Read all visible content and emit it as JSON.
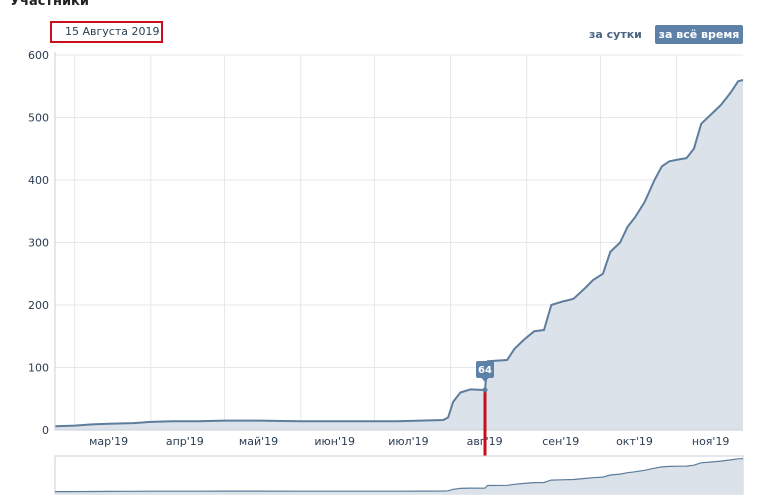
{
  "header": {
    "title": "Участники",
    "selected_date": "15 Августа 2019"
  },
  "period_buttons": {
    "day": "за сутки",
    "all_time": "за всё время",
    "active": "all_time"
  },
  "tooltip": {
    "value": "64",
    "x_date": "2019-08-15"
  },
  "colors": {
    "line": "#5e7d9c",
    "area": "#dbe2ea",
    "grid": "#e4e8ec",
    "marker": "#c8101c",
    "accent": "#5e81a8"
  },
  "chart_data": {
    "type": "area",
    "title": "Участники",
    "x_type": "date",
    "ylim": [
      0,
      600
    ],
    "xlim": [
      "2019-02-21",
      "2019-11-28"
    ],
    "y_ticks": [
      0,
      100,
      200,
      300,
      400,
      500,
      600
    ],
    "x_ticks": [
      {
        "date": "2019-03-01",
        "label": "мар'19"
      },
      {
        "date": "2019-04-01",
        "label": "апр'19"
      },
      {
        "date": "2019-05-01",
        "label": "май'19"
      },
      {
        "date": "2019-06-01",
        "label": "июн'19"
      },
      {
        "date": "2019-07-01",
        "label": "июл'19"
      },
      {
        "date": "2019-08-01",
        "label": "авг'19"
      },
      {
        "date": "2019-09-01",
        "label": "сен'19"
      },
      {
        "date": "2019-10-01",
        "label": "окт'19"
      },
      {
        "date": "2019-11-01",
        "label": "ноя'19"
      }
    ],
    "grid": true,
    "series": [
      {
        "points": [
          [
            "2019-02-21",
            6
          ],
          [
            "2019-03-01",
            7
          ],
          [
            "2019-03-08",
            9
          ],
          [
            "2019-03-15",
            10
          ],
          [
            "2019-03-25",
            11
          ],
          [
            "2019-04-01",
            13
          ],
          [
            "2019-04-10",
            14
          ],
          [
            "2019-04-20",
            14
          ],
          [
            "2019-05-01",
            15
          ],
          [
            "2019-05-15",
            15
          ],
          [
            "2019-06-01",
            14
          ],
          [
            "2019-06-15",
            14
          ],
          [
            "2019-07-01",
            14
          ],
          [
            "2019-07-10",
            14
          ],
          [
            "2019-07-20",
            15
          ],
          [
            "2019-07-29",
            16
          ],
          [
            "2019-07-31",
            20
          ],
          [
            "2019-08-02",
            45
          ],
          [
            "2019-08-05",
            60
          ],
          [
            "2019-08-09",
            65
          ],
          [
            "2019-08-15",
            64
          ],
          [
            "2019-08-16",
            110
          ],
          [
            "2019-08-24",
            112
          ],
          [
            "2019-08-27",
            130
          ],
          [
            "2019-08-31",
            145
          ],
          [
            "2019-09-04",
            158
          ],
          [
            "2019-09-08",
            160
          ],
          [
            "2019-09-11",
            200
          ],
          [
            "2019-09-15",
            205
          ],
          [
            "2019-09-20",
            210
          ],
          [
            "2019-09-25",
            228
          ],
          [
            "2019-09-28",
            240
          ],
          [
            "2019-10-02",
            250
          ],
          [
            "2019-10-05",
            285
          ],
          [
            "2019-10-09",
            300
          ],
          [
            "2019-10-12",
            325
          ],
          [
            "2019-10-15",
            340
          ],
          [
            "2019-10-19",
            365
          ],
          [
            "2019-10-23",
            400
          ],
          [
            "2019-10-26",
            422
          ],
          [
            "2019-10-29",
            430
          ],
          [
            "2019-11-02",
            433
          ],
          [
            "2019-11-05",
            435
          ],
          [
            "2019-11-08",
            450
          ],
          [
            "2019-11-11",
            490
          ],
          [
            "2019-11-15",
            505
          ],
          [
            "2019-11-19",
            520
          ],
          [
            "2019-11-23",
            540
          ],
          [
            "2019-11-26",
            558
          ],
          [
            "2019-11-28",
            560
          ]
        ]
      }
    ]
  }
}
